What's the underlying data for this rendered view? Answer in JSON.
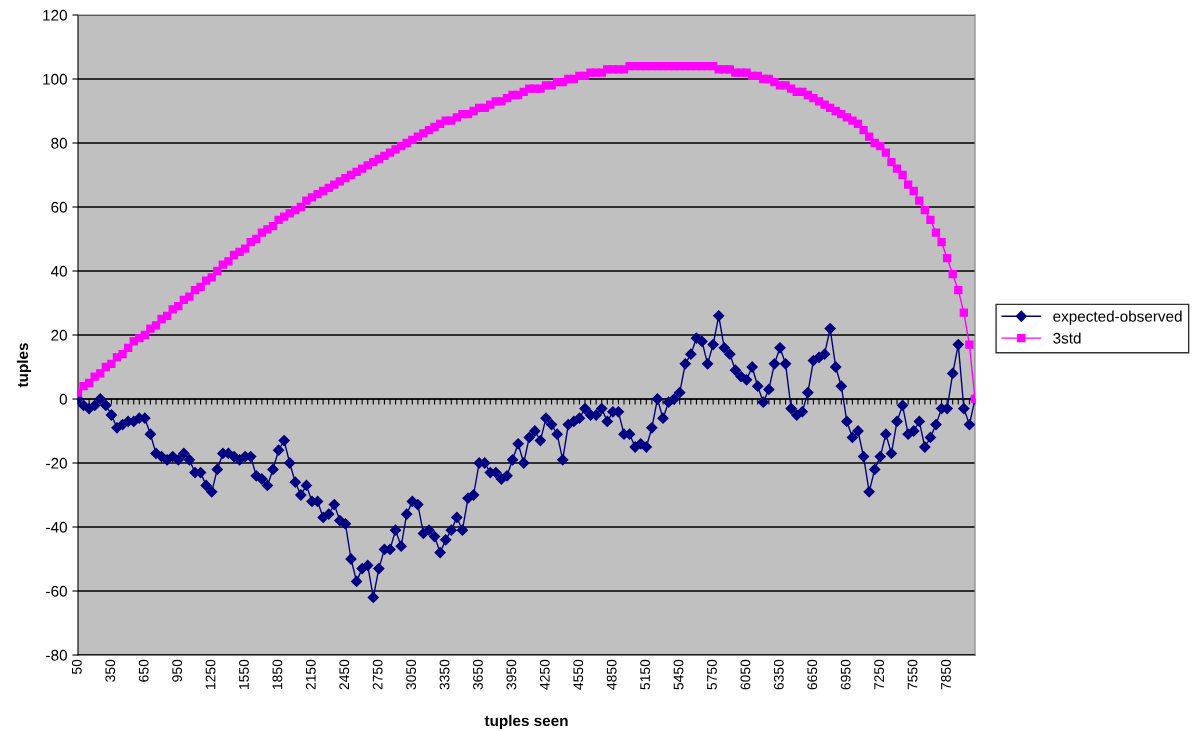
{
  "chart_data": {
    "type": "line",
    "xlabel": "tuples seen",
    "ylabel": "tuples",
    "categories": [
      "50",
      null,
      null,
      null,
      null,
      null,
      "350",
      null,
      null,
      null,
      null,
      null,
      "650",
      null,
      null,
      null,
      null,
      null,
      "950",
      null,
      null,
      null,
      null,
      null,
      "1250",
      null,
      null,
      null,
      null,
      null,
      "1550",
      null,
      null,
      null,
      null,
      null,
      "1850",
      null,
      null,
      null,
      null,
      null,
      "2150",
      null,
      null,
      null,
      null,
      null,
      "2450",
      null,
      null,
      null,
      null,
      null,
      "2750",
      null,
      null,
      null,
      null,
      null,
      "3050",
      null,
      null,
      null,
      null,
      null,
      "3350",
      null,
      null,
      null,
      null,
      null,
      "3650",
      null,
      null,
      null,
      null,
      null,
      "3950",
      null,
      null,
      null,
      null,
      null,
      "4250",
      null,
      null,
      null,
      null,
      null,
      "4550",
      null,
      null,
      null,
      null,
      null,
      "4850",
      null,
      null,
      null,
      null,
      null,
      "5150",
      null,
      null,
      null,
      null,
      null,
      "5450",
      null,
      null,
      null,
      null,
      null,
      "5750",
      null,
      null,
      null,
      null,
      null,
      "6050",
      null,
      null,
      null,
      null,
      null,
      "6350",
      null,
      null,
      null,
      null,
      null,
      "6650",
      null,
      null,
      null,
      null,
      null,
      "6950",
      null,
      null,
      null,
      null,
      null,
      "7250",
      null,
      null,
      null,
      null,
      null,
      "7550",
      null,
      null,
      null,
      null,
      null,
      "7850",
      null,
      null,
      null,
      null,
      null
    ],
    "series": [
      {
        "name": "expected-observed",
        "color": "#000080",
        "marker": "diamond",
        "values": [
          0,
          -2,
          -3,
          -2,
          0,
          -2,
          -5,
          -9,
          -8,
          -7,
          -7,
          -6,
          -6,
          -11,
          -17,
          -18,
          -19,
          -18,
          -19,
          -17,
          -19,
          -23,
          -23,
          -27,
          -29,
          -22,
          -17,
          -17,
          -18,
          -19,
          -18,
          -18,
          -24,
          -25,
          -27,
          -22,
          -16,
          -13,
          -20,
          -26,
          -30,
          -27,
          -32,
          -32,
          -37,
          -36,
          -33,
          -38,
          -39,
          -50,
          -57,
          -53,
          -52,
          -62,
          -53,
          -47,
          -47,
          -41,
          -46,
          -36,
          -32,
          -33,
          -42,
          -41,
          -43,
          -48,
          -44,
          -41,
          -37,
          -41,
          -31,
          -30,
          -20,
          -20,
          -23,
          -23,
          -25,
          -24,
          -19,
          -14,
          -20,
          -12,
          -10,
          -13,
          -6,
          -8,
          -11,
          -19,
          -8,
          -7,
          -6,
          -3,
          -5,
          -5,
          -3,
          -7,
          -4,
          -4,
          -11,
          -11,
          -15,
          -14,
          -15,
          -9,
          0,
          -6,
          -1,
          0,
          2,
          11,
          14,
          19,
          18,
          11,
          17,
          26,
          16,
          14,
          9,
          7,
          6,
          10,
          4,
          -1,
          3,
          11,
          16,
          11,
          -3,
          -5,
          -4,
          2,
          12,
          13,
          14,
          22,
          10,
          4,
          -7,
          -12,
          -10,
          -18,
          -29,
          -22,
          -18,
          -11,
          -17,
          -7,
          -2,
          -11,
          -10,
          -7,
          -15,
          -12,
          -8,
          -3,
          -3,
          8,
          17,
          -3,
          -8,
          0
        ]
      },
      {
        "name": "3std",
        "color": "#ff00ff",
        "marker": "square",
        "values": [
          2,
          4,
          5,
          7,
          8,
          10,
          11,
          13,
          14,
          16,
          18,
          19,
          20,
          22,
          23,
          25,
          26,
          28,
          29,
          31,
          32,
          34,
          35,
          37,
          38,
          40,
          42,
          43,
          45,
          46,
          47,
          49,
          50,
          52,
          53,
          54,
          56,
          57,
          58,
          59,
          60,
          62,
          63,
          64,
          65,
          66,
          67,
          68,
          69,
          70,
          71,
          72,
          73,
          74,
          75,
          76,
          77,
          78,
          79,
          80,
          81,
          82,
          83,
          84,
          85,
          86,
          87,
          87,
          88,
          89,
          89,
          90,
          91,
          91,
          92,
          93,
          93,
          94,
          95,
          95,
          96,
          97,
          97,
          97,
          98,
          98,
          99,
          99,
          100,
          100,
          101,
          101,
          102,
          102,
          102,
          103,
          103,
          103,
          103,
          104,
          104,
          104,
          104,
          104,
          104,
          104,
          104,
          104,
          104,
          104,
          104,
          104,
          104,
          104,
          104,
          103,
          103,
          103,
          102,
          102,
          102,
          101,
          101,
          100,
          100,
          99,
          98,
          98,
          97,
          96,
          96,
          95,
          94,
          93,
          92,
          91,
          90,
          89,
          88,
          87,
          86,
          84,
          82,
          80,
          79,
          77,
          74,
          72,
          70,
          67,
          65,
          62,
          59,
          56,
          52,
          49,
          44,
          39,
          34,
          27,
          17,
          0
        ]
      }
    ],
    "ylim": [
      -80,
      120
    ],
    "yticks": [
      -80,
      -60,
      -40,
      -20,
      0,
      20,
      40,
      60,
      80,
      100,
      120
    ],
    "grid": "y",
    "legend": "right",
    "line_style": "solid"
  }
}
